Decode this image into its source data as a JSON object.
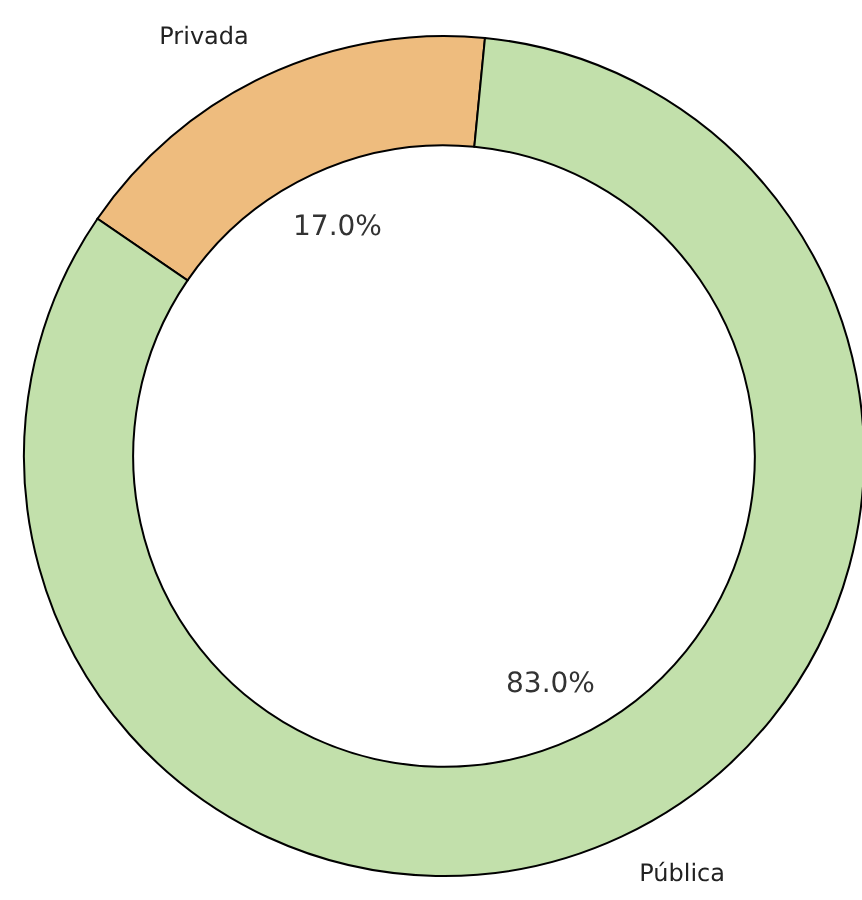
{
  "chart_data": {
    "type": "donut",
    "categories": [
      "Privada",
      "Pública"
    ],
    "values": [
      17.0,
      83.0
    ],
    "colors": [
      "#eebc7e",
      "#c2e0ab"
    ],
    "value_labels": [
      "17.0%",
      "83.0%"
    ]
  }
}
